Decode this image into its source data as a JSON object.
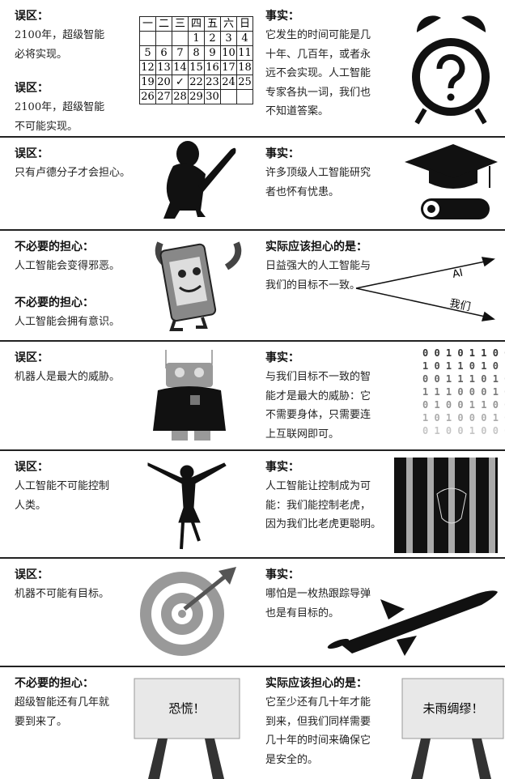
{
  "rows": [
    {
      "left": [
        {
          "heading": "误区：",
          "lines": [
            "2100年，超级智能",
            "必将实现。"
          ]
        },
        {
          "heading": "误区：",
          "lines": [
            "2100年，超级智能",
            "不可能实现。"
          ]
        }
      ],
      "right": [
        {
          "heading": "事实：",
          "lines": [
            "它发生的时间可能是几",
            "十年、几百年，或者永",
            "远不会实现。人工智能",
            "专家各执一词，我们也",
            "不知道答案。"
          ]
        }
      ]
    },
    {
      "left": [
        {
          "heading": "误区：",
          "lines": [
            "只有卢德分子才会担心。"
          ]
        }
      ],
      "right": [
        {
          "heading": "事实：",
          "lines": [
            "许多顶级人工智能研究",
            "者也怀有忧患。"
          ]
        }
      ]
    },
    {
      "left": [
        {
          "heading": "不必要的担心：",
          "lines": [
            "人工智能会变得邪恶。"
          ]
        },
        {
          "heading": "不必要的担心：",
          "lines": [
            "人工智能会拥有意识。"
          ]
        }
      ],
      "right": [
        {
          "heading": "实际应该担心的是：",
          "lines": [
            "日益强大的人工智能与",
            "我们的目标不一致。"
          ]
        }
      ]
    },
    {
      "left": [
        {
          "heading": "误区：",
          "lines": [
            "机器人是最大的威胁。"
          ]
        }
      ],
      "right": [
        {
          "heading": "事实：",
          "lines": [
            "与我们目标不一致的智",
            "能才是最大的威胁：它",
            "不需要身体，只需要连",
            "上互联网即可。"
          ]
        }
      ]
    },
    {
      "left": [
        {
          "heading": "误区：",
          "lines": [
            "人工智能不可能控制",
            "人类。"
          ]
        }
      ],
      "right": [
        {
          "heading": "事实：",
          "lines": [
            "人工智能让控制成为可",
            "能：我们能控制老虎，",
            "因为我们比老虎更聪明。"
          ]
        }
      ]
    },
    {
      "left": [
        {
          "heading": "误区：",
          "lines": [
            "机器不可能有目标。"
          ]
        }
      ],
      "right": [
        {
          "heading": "事实：",
          "lines": [
            "哪怕是一枚热跟踪导弹",
            "也是有目标的。"
          ]
        }
      ]
    },
    {
      "left": [
        {
          "heading": "不必要的担心：",
          "lines": [
            "超级智能还有几年就",
            "要到来了。"
          ]
        }
      ],
      "right": [
        {
          "heading": "实际应该担心的是：",
          "lines": [
            "它至少还有几十年才能",
            "到来，但我们同样需要",
            "几十年的时间来确保它",
            "是安全的。"
          ]
        }
      ]
    }
  ],
  "calendar": {
    "weekdays": [
      "一",
      "二",
      "三",
      "四",
      "五",
      "六",
      "日"
    ],
    "weeks": [
      [
        null,
        null,
        null,
        "1",
        "2",
        "3",
        "4"
      ],
      [
        "5",
        "6",
        "7",
        "8",
        "9",
        "10",
        "11"
      ],
      [
        "12",
        "13",
        "14",
        "15",
        "16",
        "17",
        "18"
      ],
      [
        "19",
        "20",
        "✓",
        "22",
        "23",
        "24",
        "25"
      ],
      [
        "26",
        "27",
        "28",
        "29",
        "30",
        null,
        null
      ]
    ]
  },
  "arrows": {
    "top": "AI",
    "bottom": "我们"
  },
  "binary": [
    "0 0 1 0 1 1 0 0",
    "1 0 1 1 0 1 0 1",
    "0 0 1 1 1 0 1 0",
    "1 1 1 0 0 0 1 0",
    "0 1 0 0 1 1 0 0",
    "1 0 1 0 0 0 1 0",
    "0 1 0 0 1 0 0 0"
  ],
  "signs": [
    "恐慌！",
    "未雨绸缪！"
  ]
}
